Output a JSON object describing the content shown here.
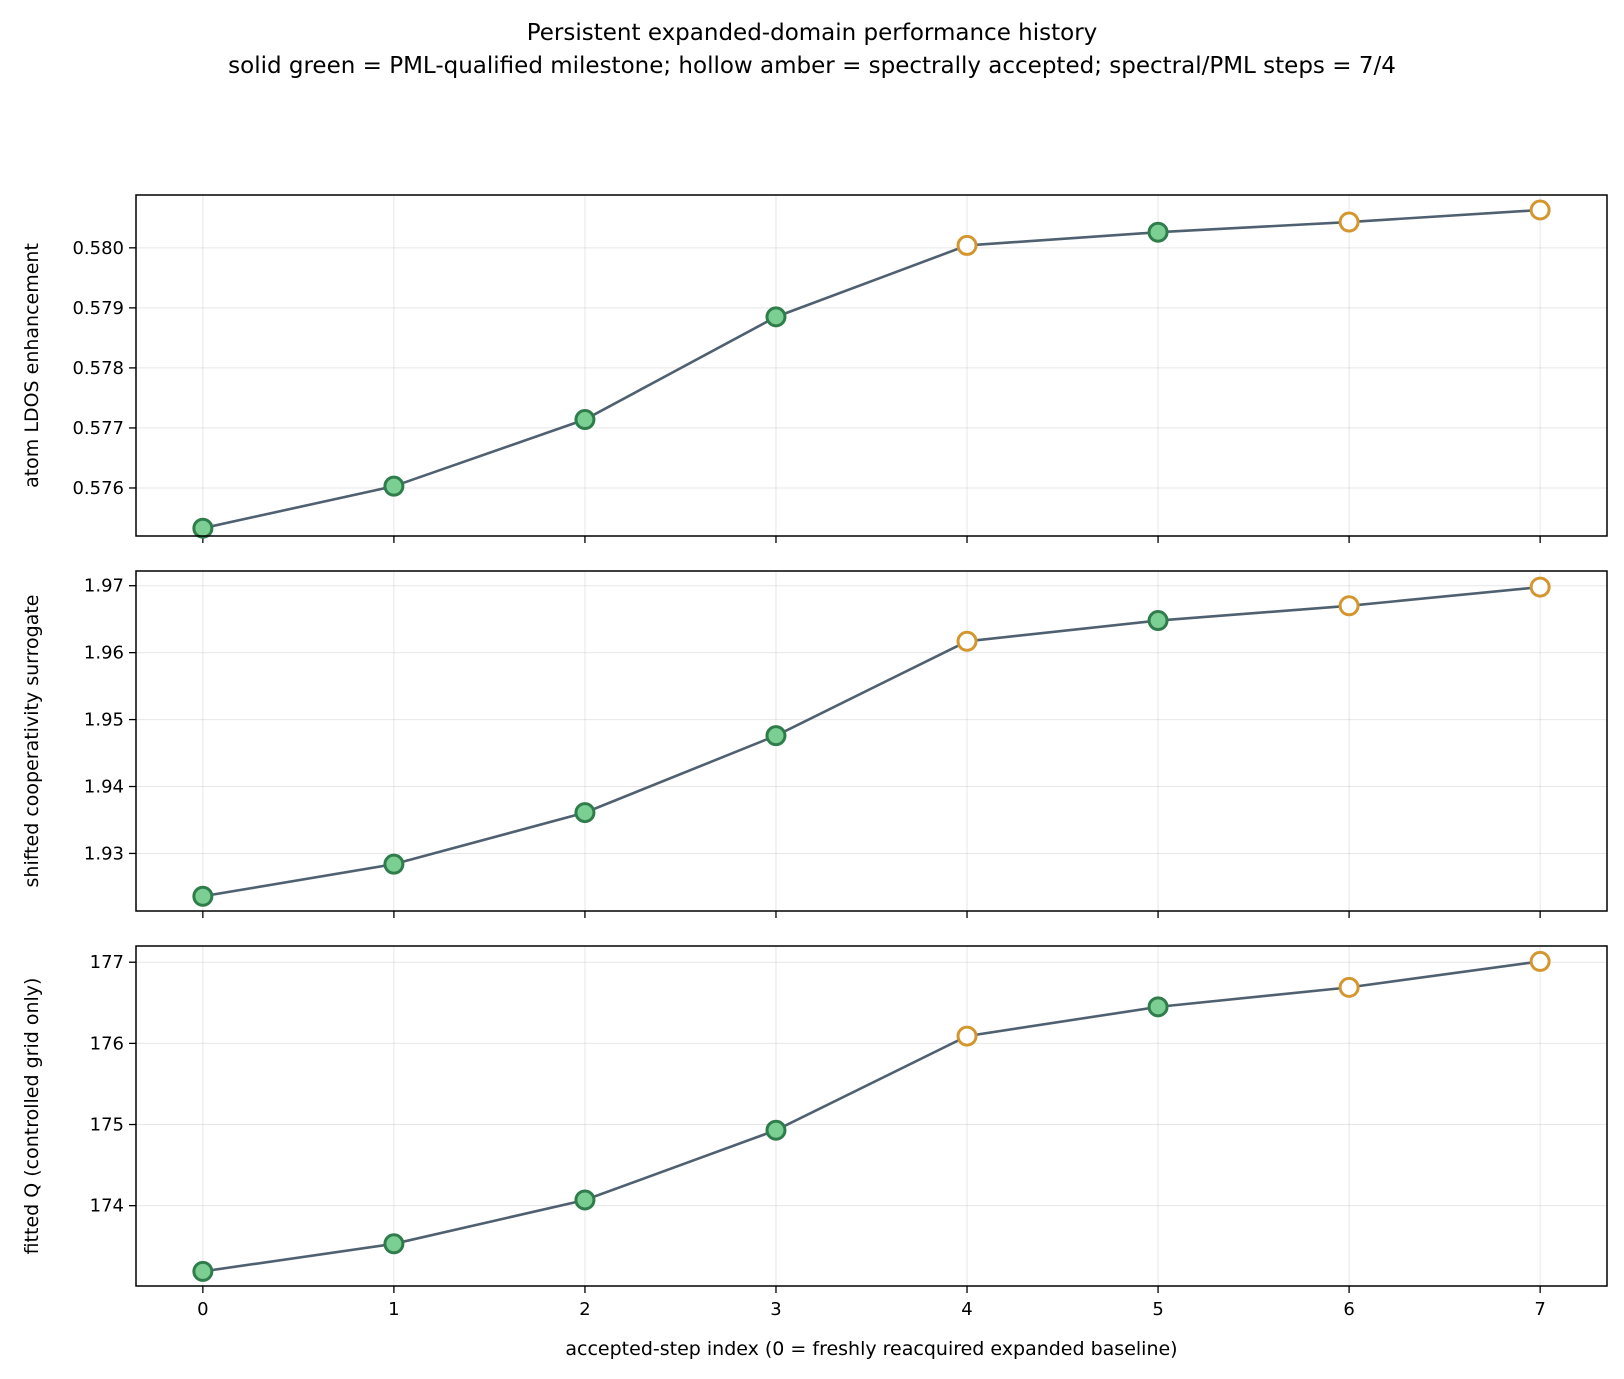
{
  "title_lines": [
    "Persistent expanded-domain performance history",
    "solid green = PML-qualified milestone; hollow amber = spectrally accepted; spectral/PML steps = 7/4"
  ],
  "colors": {
    "line": "#4f6170",
    "pml_fill": "#7ccf93",
    "pml_edge": "#2e7d4b",
    "spectral_edge": "#d4962e",
    "hollow_fill": "#ffffff"
  },
  "chart_data": [
    {
      "type": "line",
      "ylabel": "atom LDOS enhancement",
      "xlabel": "",
      "x": [
        0,
        1,
        2,
        3,
        4,
        5,
        6,
        7
      ],
      "y": [
        0.57533,
        0.57603,
        0.57714,
        0.57885,
        0.58004,
        0.58026,
        0.58043,
        0.58063
      ],
      "status": [
        "pml",
        "pml",
        "pml",
        "pml",
        "spectral",
        "pml",
        "spectral",
        "spectral"
      ],
      "xlim": [
        -0.35,
        7.35
      ],
      "ylim": [
        0.5752,
        0.58088
      ],
      "yticks": [
        0.576,
        0.577,
        0.578,
        0.579,
        0.58
      ],
      "ytick_labels": [
        "0.576",
        "0.577",
        "0.578",
        "0.579",
        "0.580"
      ],
      "xticks": [
        0,
        1,
        2,
        3,
        4,
        5,
        6,
        7
      ],
      "xtick_labels": [],
      "grid": true
    },
    {
      "type": "line",
      "ylabel": "shifted cooperativity surrogate",
      "xlabel": "",
      "x": [
        0,
        1,
        2,
        3,
        4,
        5,
        6,
        7
      ],
      "y": [
        1.9236,
        1.9284,
        1.9361,
        1.9476,
        1.9617,
        1.9648,
        1.967,
        1.9698
      ],
      "status": [
        "pml",
        "pml",
        "pml",
        "pml",
        "spectral",
        "pml",
        "spectral",
        "spectral"
      ],
      "xlim": [
        -0.35,
        7.35
      ],
      "ylim": [
        1.9214,
        1.9722
      ],
      "yticks": [
        1.93,
        1.94,
        1.95,
        1.96,
        1.97
      ],
      "ytick_labels": [
        "1.93",
        "1.94",
        "1.95",
        "1.96",
        "1.97"
      ],
      "xticks": [
        0,
        1,
        2,
        3,
        4,
        5,
        6,
        7
      ],
      "xtick_labels": [],
      "grid": true
    },
    {
      "type": "line",
      "ylabel": "fitted Q (controlled grid only)",
      "xlabel": "accepted-step index (0 = freshly reacquired expanded baseline)",
      "x": [
        0,
        1,
        2,
        3,
        4,
        5,
        6,
        7
      ],
      "y": [
        173.19,
        173.53,
        174.07,
        174.93,
        176.09,
        176.45,
        176.69,
        177.01
      ],
      "status": [
        "pml",
        "pml",
        "pml",
        "pml",
        "spectral",
        "pml",
        "spectral",
        "spectral"
      ],
      "xlim": [
        -0.35,
        7.35
      ],
      "ylim": [
        173.01,
        177.2
      ],
      "yticks": [
        174,
        175,
        176,
        177
      ],
      "ytick_labels": [
        "174",
        "175",
        "176",
        "177"
      ],
      "xticks": [
        0,
        1,
        2,
        3,
        4,
        5,
        6,
        7
      ],
      "xtick_labels": [
        "0",
        "1",
        "2",
        "3",
        "4",
        "5",
        "6",
        "7"
      ],
      "grid": true
    }
  ]
}
